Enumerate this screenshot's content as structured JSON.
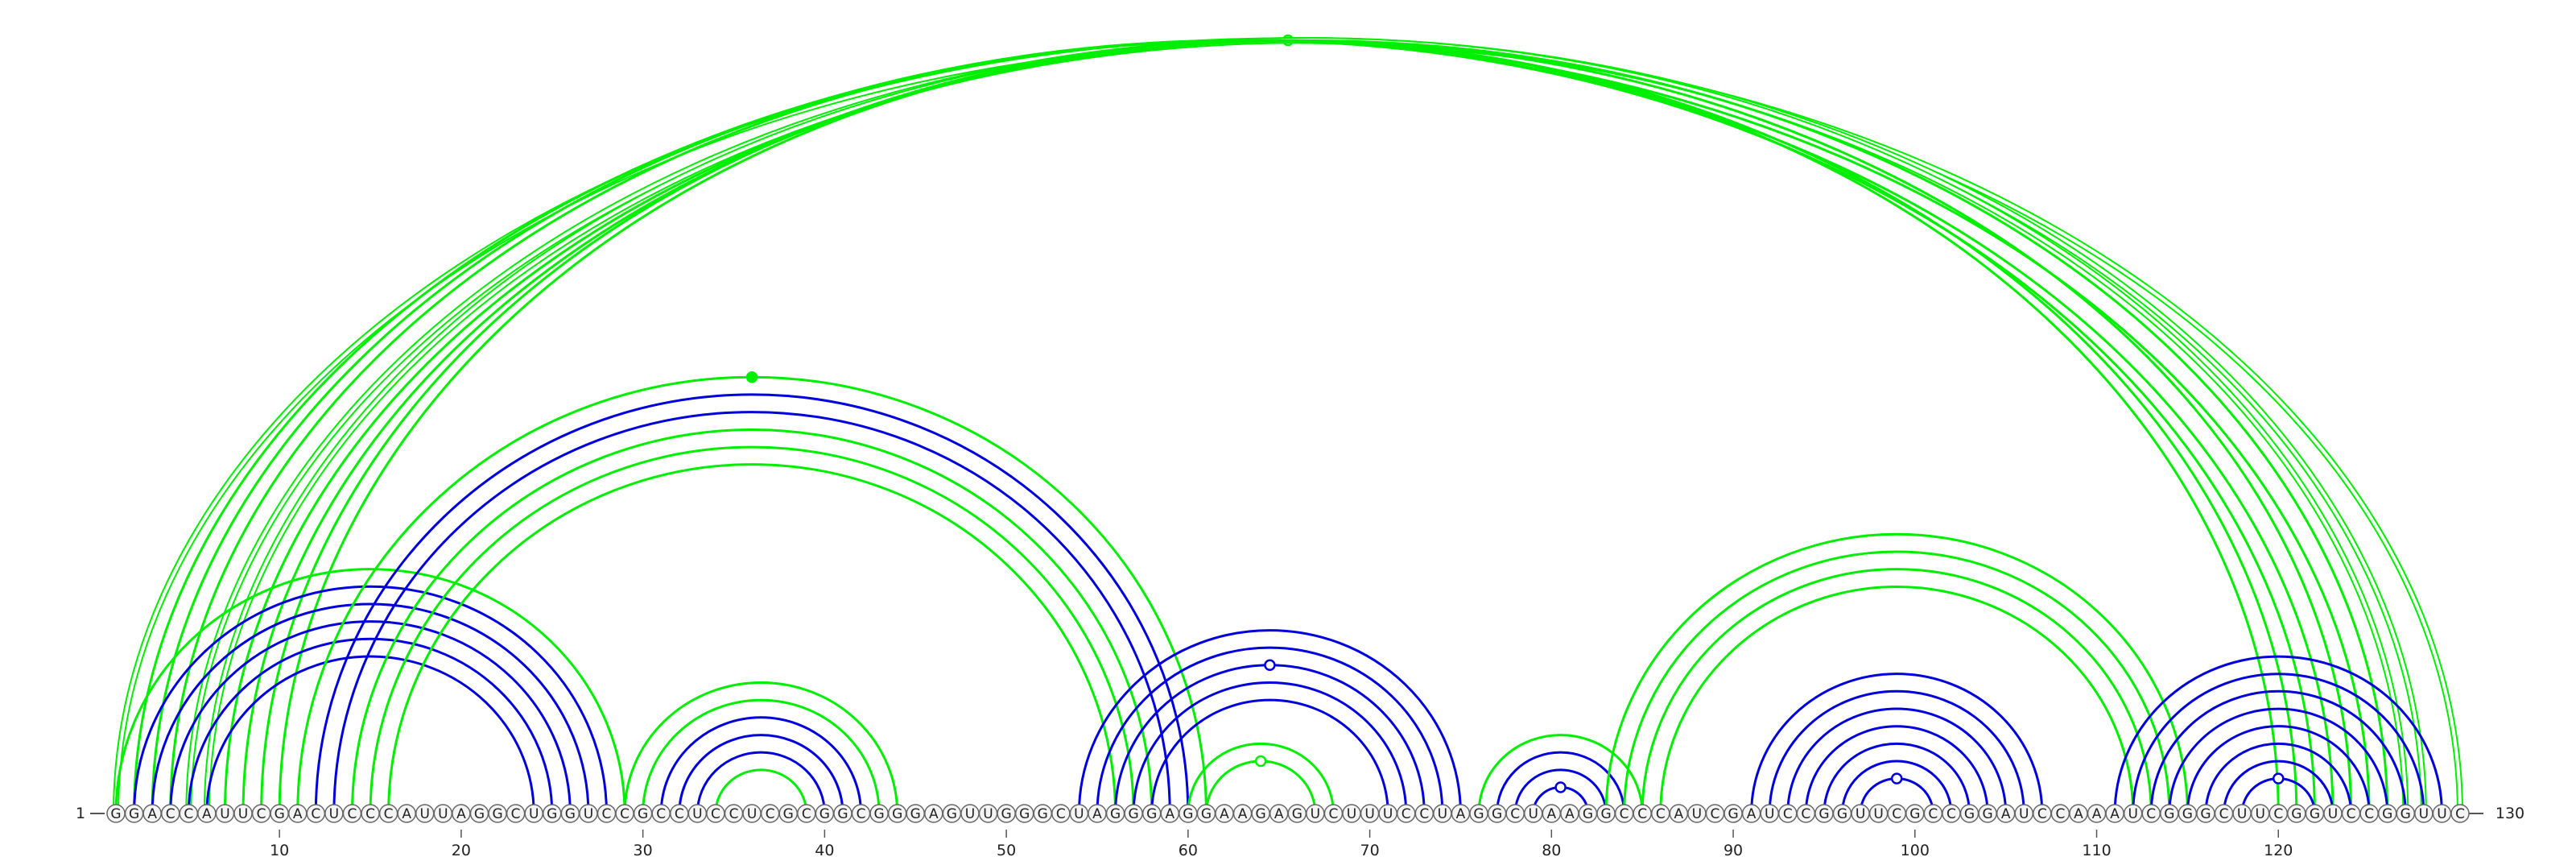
{
  "sequence": "GGACCAUUCGACUCCCAUUAGGCUGGUCCGCCUCCUCGCGGCGGGAGUUGGGCUAGGGAGGAAGAGUCUUUCCUAGGCUAAGGCCCAUCGAUCCGGUUCGCCGGAUCCAAAUCGGGCUUCGGUCCGGUUC",
  "start_label": "1",
  "end_label": "130",
  "ticks": [
    10,
    20,
    30,
    40,
    50,
    60,
    70,
    80,
    90,
    100,
    110,
    120
  ],
  "colors": {
    "green": "#00ee00",
    "blue": "#0000dd",
    "axis": "#555555",
    "text": "#222222"
  },
  "arc_groups": [
    {
      "name": "outer-green-double",
      "color": "green",
      "double": true,
      "pairs": [
        [
          1,
          130
        ]
      ],
      "marker": "open"
    },
    {
      "name": "outer-green-mid",
      "color": "green",
      "double": false,
      "pairs": [
        [
          2,
          125
        ],
        [
          3,
          123
        ],
        [
          4,
          122
        ]
      ]
    },
    {
      "name": "outer-green-wide",
      "color": "green",
      "double": true,
      "pairs": [
        [
          5,
          128
        ],
        [
          6,
          127
        ]
      ]
    },
    {
      "name": "outer-green-inner",
      "color": "green",
      "double": false,
      "pairs": [
        [
          7,
          126
        ],
        [
          8,
          124
        ],
        [
          9,
          121
        ],
        [
          10,
          120
        ]
      ]
    },
    {
      "name": "left-green-cap",
      "color": "green",
      "double": false,
      "pairs": [
        [
          1,
          29
        ]
      ]
    },
    {
      "name": "left-blue",
      "color": "blue",
      "double": false,
      "pairs": [
        [
          2,
          28
        ],
        [
          3,
          27
        ],
        [
          4,
          26
        ],
        [
          5,
          25
        ],
        [
          6,
          24
        ]
      ]
    },
    {
      "name": "mid-long-green",
      "color": "green",
      "double": false,
      "pairs": [
        [
          11,
          61
        ]
      ],
      "marker": "filled"
    },
    {
      "name": "mid-long-blue",
      "color": "blue",
      "double": false,
      "pairs": [
        [
          12,
          60
        ],
        [
          13,
          59
        ]
      ]
    },
    {
      "name": "mid-long-green-inner",
      "color": "green",
      "double": false,
      "pairs": [
        [
          14,
          58
        ],
        [
          15,
          57
        ],
        [
          16,
          56
        ]
      ]
    },
    {
      "name": "hp1-green",
      "color": "green",
      "double": false,
      "pairs": [
        [
          29,
          44
        ],
        [
          30,
          43
        ]
      ]
    },
    {
      "name": "hp1-blue",
      "color": "blue",
      "double": false,
      "pairs": [
        [
          31,
          42
        ],
        [
          32,
          41
        ],
        [
          33,
          40
        ]
      ]
    },
    {
      "name": "hp1-core",
      "color": "green",
      "double": false,
      "pairs": [
        [
          34,
          39
        ]
      ]
    },
    {
      "name": "hp2-blue",
      "color": "blue",
      "double": false,
      "pairs": [
        [
          54,
          75
        ],
        [
          55,
          74
        ],
        [
          56,
          73
        ],
        [
          57,
          72
        ],
        [
          58,
          71
        ]
      ],
      "marker_index": 2
    },
    {
      "name": "hp2-green",
      "color": "green",
      "double": false,
      "pairs": [
        [
          60,
          68
        ],
        [
          61,
          67
        ]
      ],
      "marker": "open"
    },
    {
      "name": "hp3-green",
      "color": "green",
      "double": false,
      "pairs": [
        [
          76,
          85
        ]
      ]
    },
    {
      "name": "hp3-blue",
      "color": "blue",
      "double": false,
      "pairs": [
        [
          77,
          84
        ],
        [
          78,
          83
        ],
        [
          79,
          82
        ]
      ],
      "marker": "open"
    },
    {
      "name": "right-green",
      "color": "green",
      "double": false,
      "pairs": [
        [
          83,
          115
        ],
        [
          84,
          114
        ],
        [
          85,
          113
        ],
        [
          86,
          112
        ]
      ]
    },
    {
      "name": "hp4-blue",
      "color": "blue",
      "double": false,
      "pairs": [
        [
          91,
          107
        ],
        [
          92,
          106
        ],
        [
          93,
          105
        ],
        [
          94,
          104
        ],
        [
          95,
          103
        ],
        [
          96,
          102
        ],
        [
          97,
          101
        ]
      ],
      "marker": "open"
    },
    {
      "name": "hp5-blue",
      "color": "blue",
      "double": false,
      "pairs": [
        [
          111,
          129
        ],
        [
          112,
          128
        ],
        [
          113,
          127
        ],
        [
          114,
          126
        ],
        [
          115,
          125
        ],
        [
          116,
          124
        ],
        [
          117,
          123
        ],
        [
          118,
          122
        ]
      ],
      "marker": "open"
    }
  ]
}
